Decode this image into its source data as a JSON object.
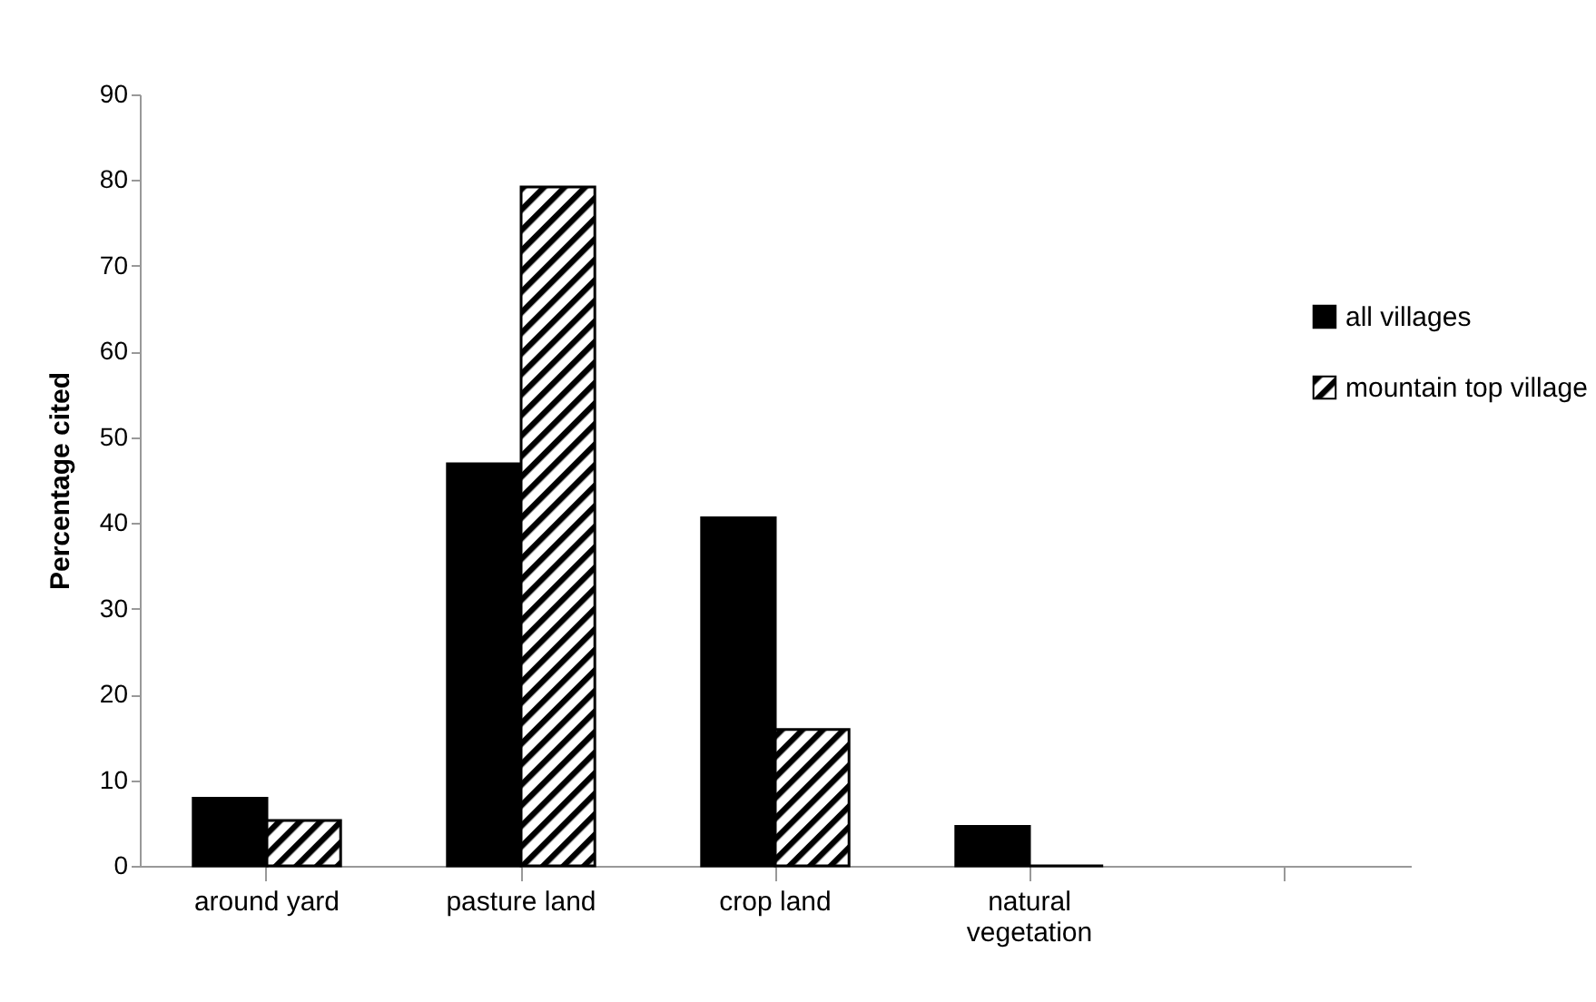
{
  "chart_data": {
    "type": "bar",
    "ylabel": "Percentage cited",
    "categories": [
      "around yard",
      "pasture land",
      "crop land",
      "natural vegetation",
      null
    ],
    "series": [
      {
        "name": "all villages",
        "color": "#000000",
        "values": [
          7.9,
          46.9,
          40.6,
          4.6,
          null
        ]
      },
      {
        "name": "mountain top village",
        "color": "#000000",
        "values": [
          5.3,
          79.2,
          15.9,
          0,
          null
        ]
      }
    ],
    "ylim": [
      0,
      90
    ],
    "yticks": [
      0,
      10,
      20,
      30,
      40,
      50,
      60,
      70,
      80,
      90
    ],
    "grid": false,
    "legend": "top right"
  }
}
